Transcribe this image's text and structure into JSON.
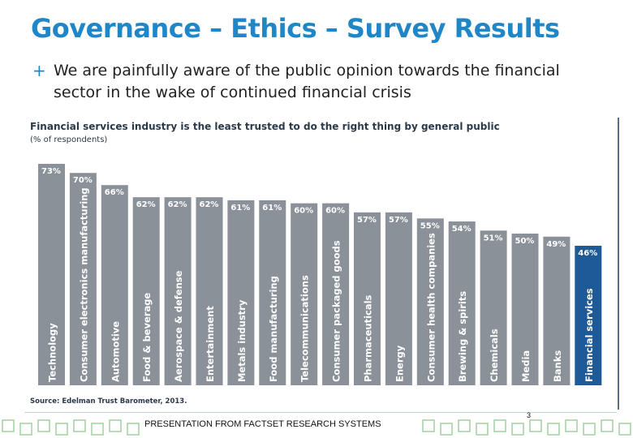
{
  "slide": {
    "title": "Governance – Ethics – Survey Results",
    "bullet_mark": "+",
    "bullet": "We are painfully aware of the public opinion towards the financial sector in the wake of continued financial crisis",
    "footer": "PRESENTATION FROM FACTSET RESEARCH SYSTEMS",
    "page_number": "3"
  },
  "colors": {
    "title": "#1f86c8",
    "bar": "#8a9198",
    "highlight_bar": "#1d5a96",
    "label_on_bar": "#ffffff",
    "label_above_bar": "#2b3a4b",
    "decoration": "#9fd19f"
  },
  "chart_data": {
    "type": "bar",
    "title": "Financial services industry is the least trusted to do the right thing by general public",
    "subtitle": "(% of respondents)",
    "source": "Source: Edelman Trust Barometer, 2013.",
    "categories": [
      "Technology",
      "Consumer electronics manufacturing",
      "Automotive",
      "Food & beverage",
      "Aerospace & defense",
      "Entertainment",
      "Metals industry",
      "Food manufacturing",
      "Telecommunications",
      "Consumer packaged goods",
      "Pharmaceuticals",
      "Energy",
      "Consumer health companies",
      "Brewing & spirits",
      "Chemicals",
      "Media",
      "Banks",
      "Financial services"
    ],
    "values": [
      73,
      70,
      66,
      62,
      62,
      62,
      61,
      61,
      60,
      60,
      57,
      57,
      55,
      54,
      51,
      50,
      49,
      46
    ],
    "value_labels": [
      "73%",
      "70%",
      "66%",
      "62%",
      "62%",
      "62%",
      "61%",
      "61%",
      "60%",
      "60%",
      "57%",
      "57%",
      "55%",
      "54%",
      "51%",
      "50%",
      "49%",
      "46%"
    ],
    "highlight": "Financial services",
    "ylim": [
      0,
      73
    ]
  }
}
